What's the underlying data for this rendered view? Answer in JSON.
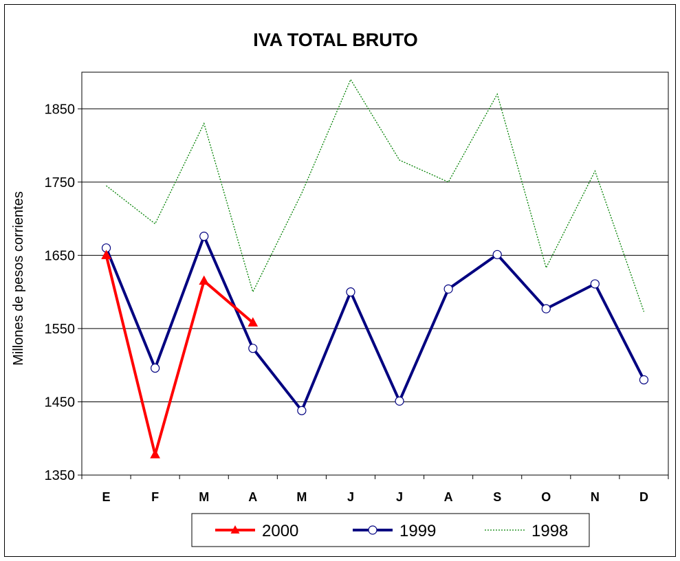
{
  "chart_data": {
    "type": "line",
    "title": "IVA TOTAL BRUTO",
    "xlabel": "",
    "ylabel": "Millones de pesos corrientes",
    "categories": [
      "E",
      "F",
      "M",
      "A",
      "M",
      "J",
      "J",
      "A",
      "S",
      "O",
      "N",
      "D"
    ],
    "ylim": [
      1350,
      1900
    ],
    "yticks": [
      1350,
      1450,
      1550,
      1650,
      1750,
      1850
    ],
    "grid": true,
    "legend_position": "bottom",
    "series": [
      {
        "name": "2000",
        "color": "#ff0000",
        "marker": "triangle",
        "style": "solid",
        "values": [
          1650,
          1378,
          1615,
          1558,
          null,
          null,
          null,
          null,
          null,
          null,
          null,
          null
        ]
      },
      {
        "name": "1999",
        "color": "#000080",
        "marker": "circle",
        "style": "solid",
        "values": [
          1660,
          1496,
          1676,
          1523,
          1438,
          1600,
          1451,
          1604,
          1651,
          1577,
          1611,
          1480
        ]
      },
      {
        "name": "1998",
        "color": "#008000",
        "marker": "none",
        "style": "dotted",
        "values": [
          1745,
          1693,
          1830,
          1600,
          1735,
          1890,
          1780,
          1750,
          1870,
          1633,
          1765,
          1573
        ]
      }
    ]
  }
}
